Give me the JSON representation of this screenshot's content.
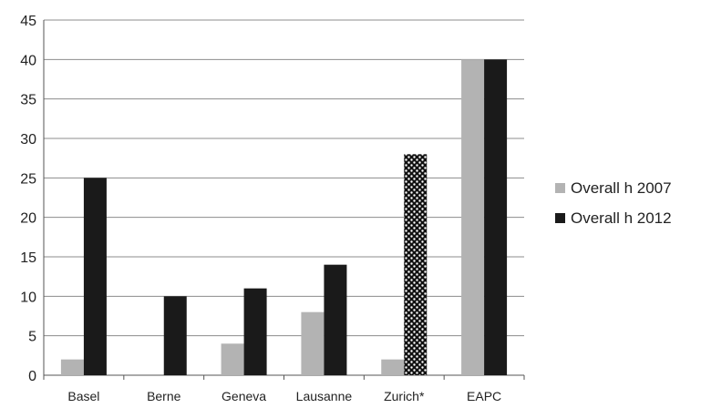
{
  "chart_data": {
    "type": "bar",
    "categories": [
      "Basel",
      "Berne",
      "Geneva",
      "Lausanne",
      "Zurich*",
      "EAPC"
    ],
    "series": [
      {
        "name": "Overall h 2007",
        "values": [
          2,
          0,
          4,
          8,
          2,
          40
        ],
        "color": "#b3b3b3"
      },
      {
        "name": "Overall h 2012",
        "values": [
          25,
          10,
          11,
          14,
          28,
          40
        ],
        "color": "#1a1a1a"
      }
    ],
    "patterned_bars": [
      {
        "series": 1,
        "category": 4,
        "pattern": "dots"
      }
    ],
    "yticks": [
      "0",
      "5",
      "10",
      "15",
      "20",
      "25",
      "30",
      "35",
      "40",
      "45"
    ],
    "ylim": [
      0,
      45
    ],
    "grid": true,
    "legend_position": "right"
  }
}
